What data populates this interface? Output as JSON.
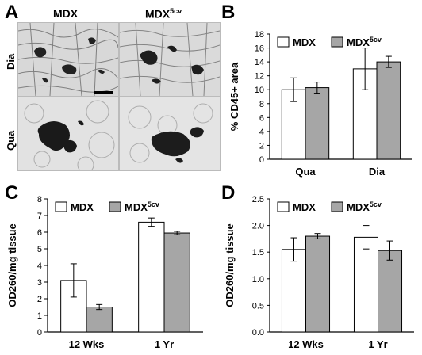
{
  "panels": {
    "a": "A",
    "b": "B",
    "c": "C",
    "d": "D"
  },
  "micrograph": {
    "col_labels": [
      "MDX",
      "MDX"
    ],
    "col_label_sup": [
      "",
      "5cv"
    ],
    "row_labels": [
      "Dia",
      "Qua"
    ]
  },
  "chart_data": [
    {
      "panel": "B",
      "type": "bar",
      "categories": [
        "Qua",
        "Dia"
      ],
      "series": [
        {
          "name": "MDX",
          "name_sup": "",
          "color": "#ffffff",
          "values": [
            10.0,
            13.0
          ],
          "errors": [
            1.7,
            3.0
          ]
        },
        {
          "name": "MDX",
          "name_sup": "5cv",
          "color": "#a6a6a6",
          "values": [
            10.3,
            14.0
          ],
          "errors": [
            0.8,
            0.8
          ]
        }
      ],
      "xlabel": "",
      "ylabel": "% CD45+ area",
      "ylim": [
        0,
        18
      ],
      "yticks": [
        0,
        2,
        4,
        6,
        8,
        10,
        12,
        14,
        16,
        18
      ],
      "ytick_labels": [
        "0",
        "2",
        "4",
        "6",
        "8",
        "10",
        "12",
        "14",
        "16",
        "18"
      ],
      "legend": "top"
    },
    {
      "panel": "C",
      "type": "bar",
      "categories": [
        "12 Wks",
        "1 Yr"
      ],
      "series": [
        {
          "name": "MDX",
          "name_sup": "",
          "color": "#ffffff",
          "values": [
            3.1,
            6.6
          ],
          "errors": [
            1.0,
            0.25
          ]
        },
        {
          "name": "MDX",
          "name_sup": "5cv",
          "color": "#a6a6a6",
          "values": [
            1.5,
            5.95
          ],
          "errors": [
            0.15,
            0.1
          ]
        }
      ],
      "xlabel": "",
      "ylabel": "OD260/mg tissue",
      "ylim": [
        0,
        8
      ],
      "yticks": [
        0,
        1,
        2,
        3,
        4,
        5,
        6,
        7,
        8
      ],
      "ytick_labels": [
        "0",
        "1",
        "2",
        "3",
        "4",
        "5",
        "6",
        "7",
        "8"
      ],
      "legend": "top"
    },
    {
      "panel": "D",
      "type": "bar",
      "categories": [
        "12 Wks",
        "1 Yr"
      ],
      "series": [
        {
          "name": "MDX",
          "name_sup": "",
          "color": "#ffffff",
          "values": [
            1.55,
            1.78
          ],
          "errors": [
            0.22,
            0.22
          ]
        },
        {
          "name": "MDX",
          "name_sup": "5cv",
          "color": "#a6a6a6",
          "values": [
            1.8,
            1.53
          ],
          "errors": [
            0.05,
            0.18
          ]
        }
      ],
      "xlabel": "",
      "ylabel": "OD260/mg tissue",
      "ylim": [
        0,
        2.5
      ],
      "yticks": [
        0,
        0.5,
        1.0,
        1.5,
        2.0,
        2.5
      ],
      "ytick_labels": [
        "0.0",
        "0.5",
        "1.0",
        "1.5",
        "2.0",
        "2.5"
      ],
      "legend": "top"
    }
  ]
}
